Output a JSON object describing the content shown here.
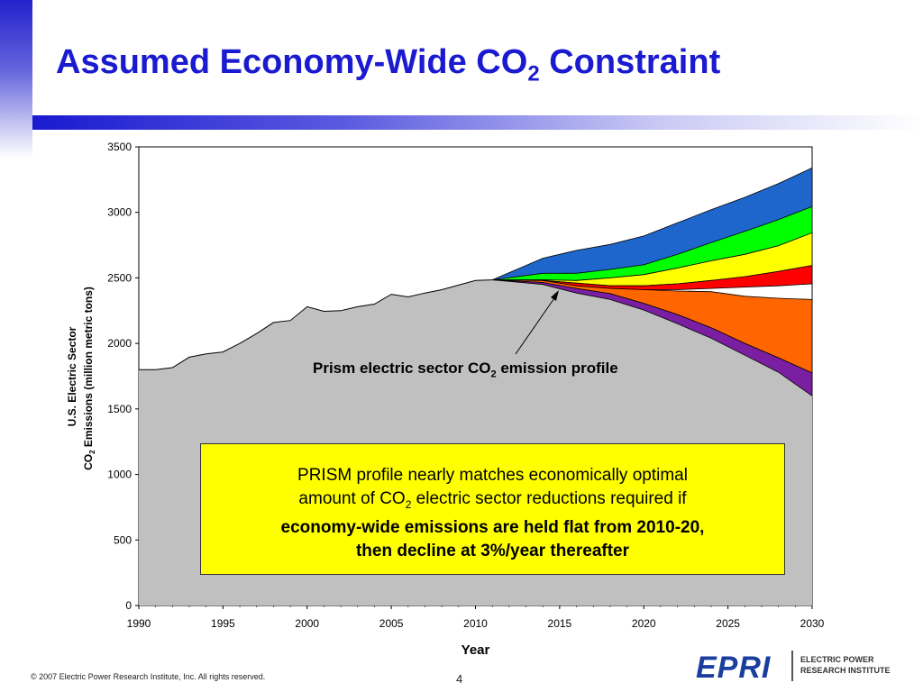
{
  "title": {
    "text": "Assumed Economy-Wide CO",
    "sub": "2",
    "after": " Constraint"
  },
  "footer": {
    "copyright": "© 2007 Electric Power Research Institute, Inc. All rights reserved.",
    "page": "4"
  },
  "logo": {
    "mark": "EPRI",
    "line1": "ELECTRIC POWER",
    "line2": "RESEARCH INSTITUTE"
  },
  "profile_label": {
    "a": "Prism electric sector CO",
    "sub": "2",
    "b": " emission profile"
  },
  "callout": {
    "line1": "PRISM profile nearly matches economically optimal",
    "line2a": "amount of CO",
    "line2sub": "2",
    "line2b": " electric sector reductions required if",
    "line3": "economy-wide emissions are held flat from 2010-20,",
    "line4": "then decline at 3%/year thereafter"
  },
  "chart_data": {
    "type": "area",
    "xlabel": "Year",
    "ylabel_line1": "U.S. Electric Sector",
    "ylabel_line2a": "CO",
    "ylabel_line2sub": "2",
    "ylabel_line2b": " Emissions (million metric tons)",
    "xlim": [
      1990,
      2030
    ],
    "ylim": [
      0,
      3500
    ],
    "xticks": [
      1990,
      1995,
      2000,
      2005,
      2010,
      2015,
      2020,
      2025,
      2030
    ],
    "yticks": [
      0,
      500,
      1000,
      1500,
      2000,
      2500,
      3000,
      3500
    ],
    "baseline": {
      "x": [
        1990,
        1991,
        1992,
        1993,
        1994,
        1995,
        1996,
        1997,
        1998,
        1999,
        2000,
        2001,
        2002,
        2003,
        2004,
        2005,
        2006,
        2007,
        2008,
        2009,
        2010,
        2011
      ],
      "y": [
        1800,
        1800,
        1815,
        1895,
        1920,
        1935,
        2000,
        2075,
        2160,
        2175,
        2280,
        2245,
        2250,
        2280,
        2300,
        2375,
        2355,
        2385,
        2410,
        2445,
        2480,
        2485
      ]
    },
    "projection_x": [
      2011,
      2014,
      2016,
      2018,
      2020,
      2022,
      2024,
      2026,
      2028,
      2030
    ],
    "bands": [
      {
        "color": "#1f66cc",
        "bottom": [
          2485,
          2500,
          2525,
          2560,
          2600,
          2660,
          2730,
          2790,
          2855,
          2945
        ],
        "top": [
          2485,
          2650,
          2710,
          2755,
          2820,
          2920,
          3020,
          3115,
          3220,
          3340
        ]
      },
      {
        "color": "#00ff00",
        "bottom": [
          2485,
          2485,
          2480,
          2500,
          2525,
          2575,
          2630,
          2680,
          2745,
          2820
        ],
        "top": [
          2485,
          2535,
          2535,
          2565,
          2600,
          2680,
          2770,
          2855,
          2945,
          3045
        ]
      },
      {
        "color": "#ffff00",
        "bottom": [
          2485,
          2480,
          2460,
          2440,
          2440,
          2455,
          2480,
          2500,
          2530,
          2565
        ],
        "top": [
          2485,
          2485,
          2480,
          2500,
          2525,
          2575,
          2630,
          2680,
          2745,
          2845
        ]
      },
      {
        "color": "#ff0000",
        "bottom": [
          2485,
          2480,
          2440,
          2420,
          2410,
          2410,
          2420,
          2430,
          2440,
          2455
        ],
        "top": [
          2485,
          2480,
          2460,
          2440,
          2440,
          2455,
          2480,
          2510,
          2550,
          2595
        ]
      },
      {
        "color": "#ff6600",
        "bottom": [
          2485,
          2465,
          2420,
          2380,
          2305,
          2220,
          2120,
          2000,
          1890,
          1775
        ],
        "top": [
          2485,
          2480,
          2440,
          2420,
          2410,
          2400,
          2395,
          2360,
          2345,
          2335
        ]
      },
      {
        "color": "#7b1fa2",
        "bottom": [
          2485,
          2450,
          2385,
          2335,
          2255,
          2150,
          2040,
          1910,
          1780,
          1600
        ],
        "top": [
          2485,
          2465,
          2420,
          2380,
          2305,
          2220,
          2120,
          2000,
          1890,
          1775
        ]
      }
    ]
  }
}
